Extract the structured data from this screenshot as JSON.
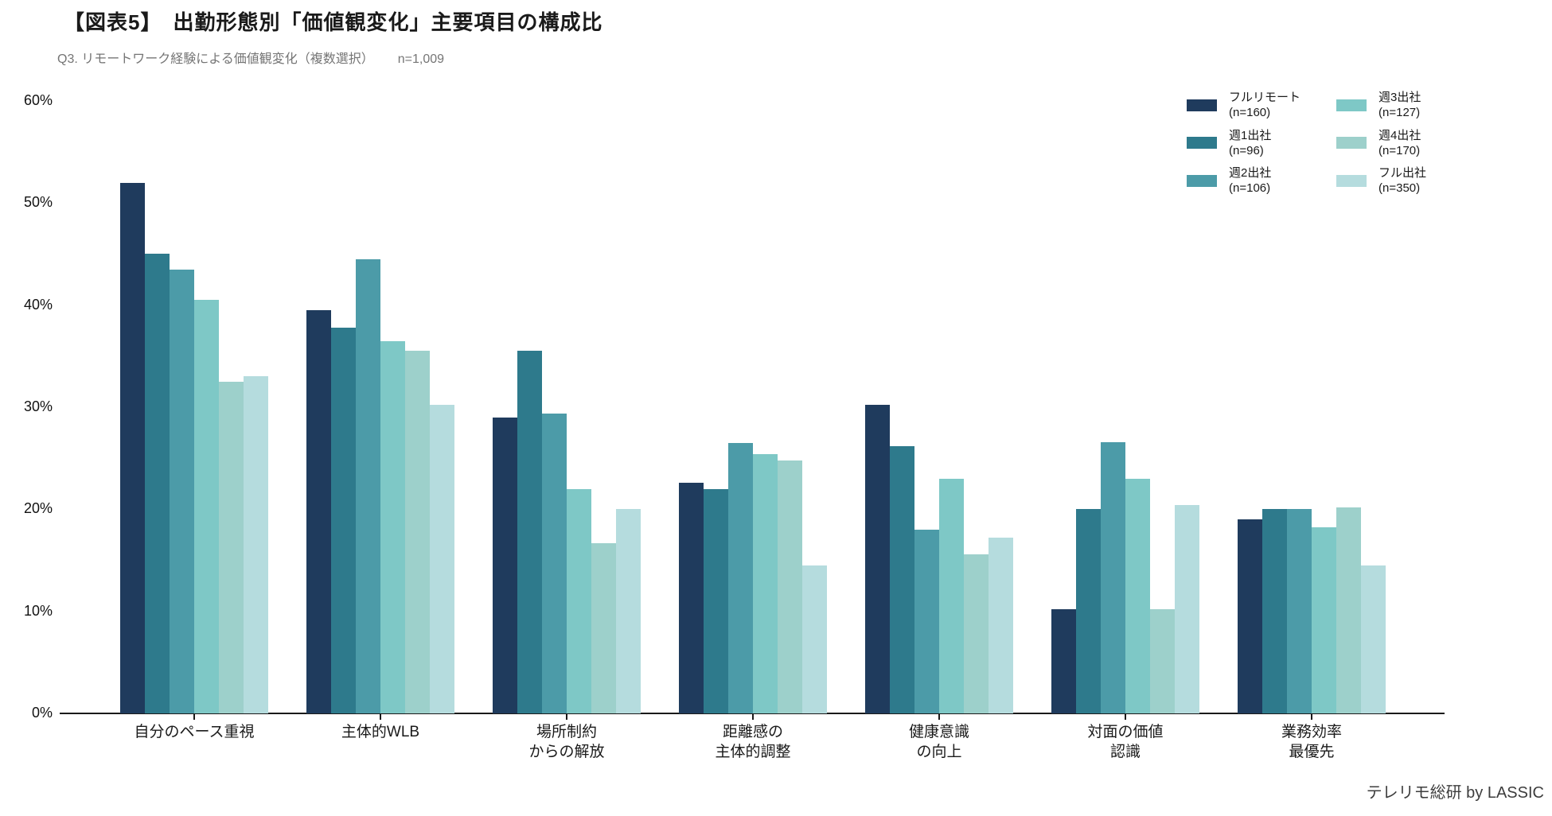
{
  "header": {
    "title": "【図表5】　出勤形態別「価値観変化」主要項目の構成比",
    "subtitle_q": "Q3. リモートワーク経験による価値観変化（複数選択）",
    "subtitle_n": "n=1,009"
  },
  "footer": {
    "credit": "テレリモ総研 by LASSIC"
  },
  "chart_data": {
    "type": "bar",
    "grouped": true,
    "title": "【図表5】　出勤形態別「価値観変化」主要項目の構成比",
    "subtitle": "Q3. リモートワーク経験による価値観変化（複数選択）　n=1,009",
    "xlabel": "",
    "ylabel": "",
    "ylim": [
      0,
      60
    ],
    "yticks": [
      0,
      10,
      20,
      30,
      40,
      50,
      60
    ],
    "ytick_labels": [
      "0%",
      "10%",
      "20%",
      "30%",
      "40%",
      "50%",
      "60%"
    ],
    "grid": false,
    "legend_position": "top-right",
    "axis_color": "#1a1a1a",
    "categories": [
      "自分のペース重視",
      "主体的WLB",
      "場所制約\nからの解放",
      "距離感の\n主体的調整",
      "健康意識\nの向上",
      "対面の価値\n認識",
      "業務効率\n最優先"
    ],
    "series": [
      {
        "name": "フルリモート",
        "n_label": "(n=160)",
        "color": "#1F3B5D",
        "values": [
          52.0,
          39.5,
          29.0,
          22.6,
          30.2,
          10.2,
          19.0
        ]
      },
      {
        "name": "週1出社",
        "n_label": "(n=96)",
        "color": "#2E7A8C",
        "values": [
          45.0,
          37.8,
          35.5,
          22.0,
          26.2,
          20.0,
          20.0
        ]
      },
      {
        "name": "週2出社",
        "n_label": "(n=106)",
        "color": "#4C9BA8",
        "values": [
          43.5,
          44.5,
          29.4,
          26.5,
          18.0,
          26.6,
          20.0
        ]
      },
      {
        "name": "週3出社",
        "n_label": "(n=127)",
        "color": "#7EC8C6",
        "values": [
          40.5,
          36.5,
          22.0,
          25.4,
          23.0,
          23.0,
          18.2
        ]
      },
      {
        "name": "週4出社",
        "n_label": "(n=170)",
        "color": "#9DD0CB",
        "values": [
          32.5,
          35.5,
          16.7,
          24.8,
          15.6,
          10.2,
          20.2
        ]
      },
      {
        "name": "フル出社",
        "n_label": "(n=350)",
        "color": "#B5DCDE",
        "values": [
          33.0,
          30.2,
          20.0,
          14.5,
          17.2,
          20.4,
          14.5
        ]
      }
    ]
  }
}
